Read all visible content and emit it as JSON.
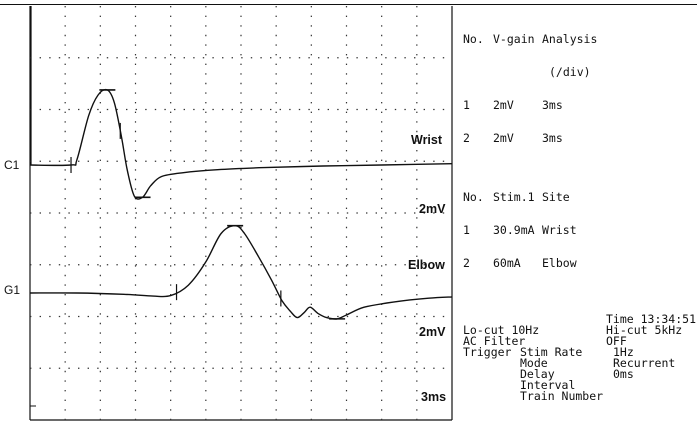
{
  "chart_data": {
    "type": "line",
    "title": "",
    "grid": true,
    "divisions": {
      "x": 12,
      "y": 8
    },
    "x_per_div_ms": 3,
    "series": [
      {
        "name": "Wrist",
        "channel_label": "C1",
        "gain_per_div_mV": 2,
        "points": [
          [
            0,
            0
          ],
          [
            3.5,
            0
          ],
          [
            4,
            0.2
          ],
          [
            5,
            1.9
          ],
          [
            5.8,
            2.7
          ],
          [
            6.6,
            2.9
          ],
          [
            7.2,
            2.4
          ],
          [
            7.8,
            1.1
          ],
          [
            8.3,
            -0.2
          ],
          [
            8.9,
            -1.2
          ],
          [
            9.6,
            -1.25
          ],
          [
            10.3,
            -0.8
          ],
          [
            11.2,
            -0.45
          ],
          [
            13,
            -0.3
          ],
          [
            16,
            -0.18
          ],
          [
            20,
            -0.1
          ],
          [
            25,
            -0.04
          ],
          [
            30,
            0
          ],
          [
            36,
            0.05
          ]
        ],
        "markers_ms": [
          3.5,
          7.7
        ]
      },
      {
        "name": "Elbow",
        "channel_label": "G1",
        "gain_per_div_mV": 2,
        "points": [
          [
            0,
            0
          ],
          [
            4,
            0
          ],
          [
            8,
            -0.05
          ],
          [
            10.5,
            -0.12
          ],
          [
            12,
            -0.1
          ],
          [
            13.5,
            0.3
          ],
          [
            15,
            1.2
          ],
          [
            16.3,
            2.3
          ],
          [
            17.5,
            2.6
          ],
          [
            18.3,
            2.3
          ],
          [
            19.5,
            1.4
          ],
          [
            20.6,
            0.5
          ],
          [
            21.5,
            -0.3
          ],
          [
            22.2,
            -0.7
          ],
          [
            22.8,
            -0.95
          ],
          [
            23.4,
            -0.75
          ],
          [
            23.9,
            -0.55
          ],
          [
            24.6,
            -0.8
          ],
          [
            25.3,
            -0.95
          ],
          [
            26.2,
            -1.0
          ],
          [
            27,
            -0.85
          ],
          [
            28.5,
            -0.55
          ],
          [
            31,
            -0.35
          ],
          [
            34,
            -0.2
          ],
          [
            36,
            -0.15
          ]
        ],
        "markers_ms": [
          12.5,
          21.4
        ]
      }
    ]
  },
  "labels": {
    "c1": "C1",
    "g1": "G1",
    "wrist": "Wrist",
    "gain_top": "2mV",
    "elbow": "Elbow",
    "gain_bottom": "2mV",
    "time_scale": "3ms"
  },
  "vgain_table": {
    "headers": [
      "No.",
      "V-gain",
      "Analysis",
      "(/div)"
    ],
    "rows": [
      [
        "1",
        "2mV",
        "3ms"
      ],
      [
        "2",
        "2mV",
        "3ms"
      ]
    ]
  },
  "stim_table": {
    "headers": [
      "No.",
      "Stim.1",
      "Site"
    ],
    "rows": [
      [
        "1",
        "30.9mA",
        "Wrist"
      ],
      [
        "2",
        "60mA",
        "Elbow"
      ]
    ]
  },
  "settings": {
    "time": "Time 13:34:51",
    "lo_cut": "Lo-cut 10Hz",
    "hi_cut": "Hi-cut 5kHz",
    "ac_filter_label": "AC Filter",
    "ac_filter_value": "OFF",
    "trigger_label": "Trigger",
    "stim_rate_label": "Stim Rate",
    "stim_rate_value": "1Hz",
    "mode_label": "Mode",
    "mode_value": "Recurrent",
    "delay_label": "Delay",
    "delay_value": "0ms",
    "interval_label": "Interval",
    "train_label": "Train Number"
  }
}
